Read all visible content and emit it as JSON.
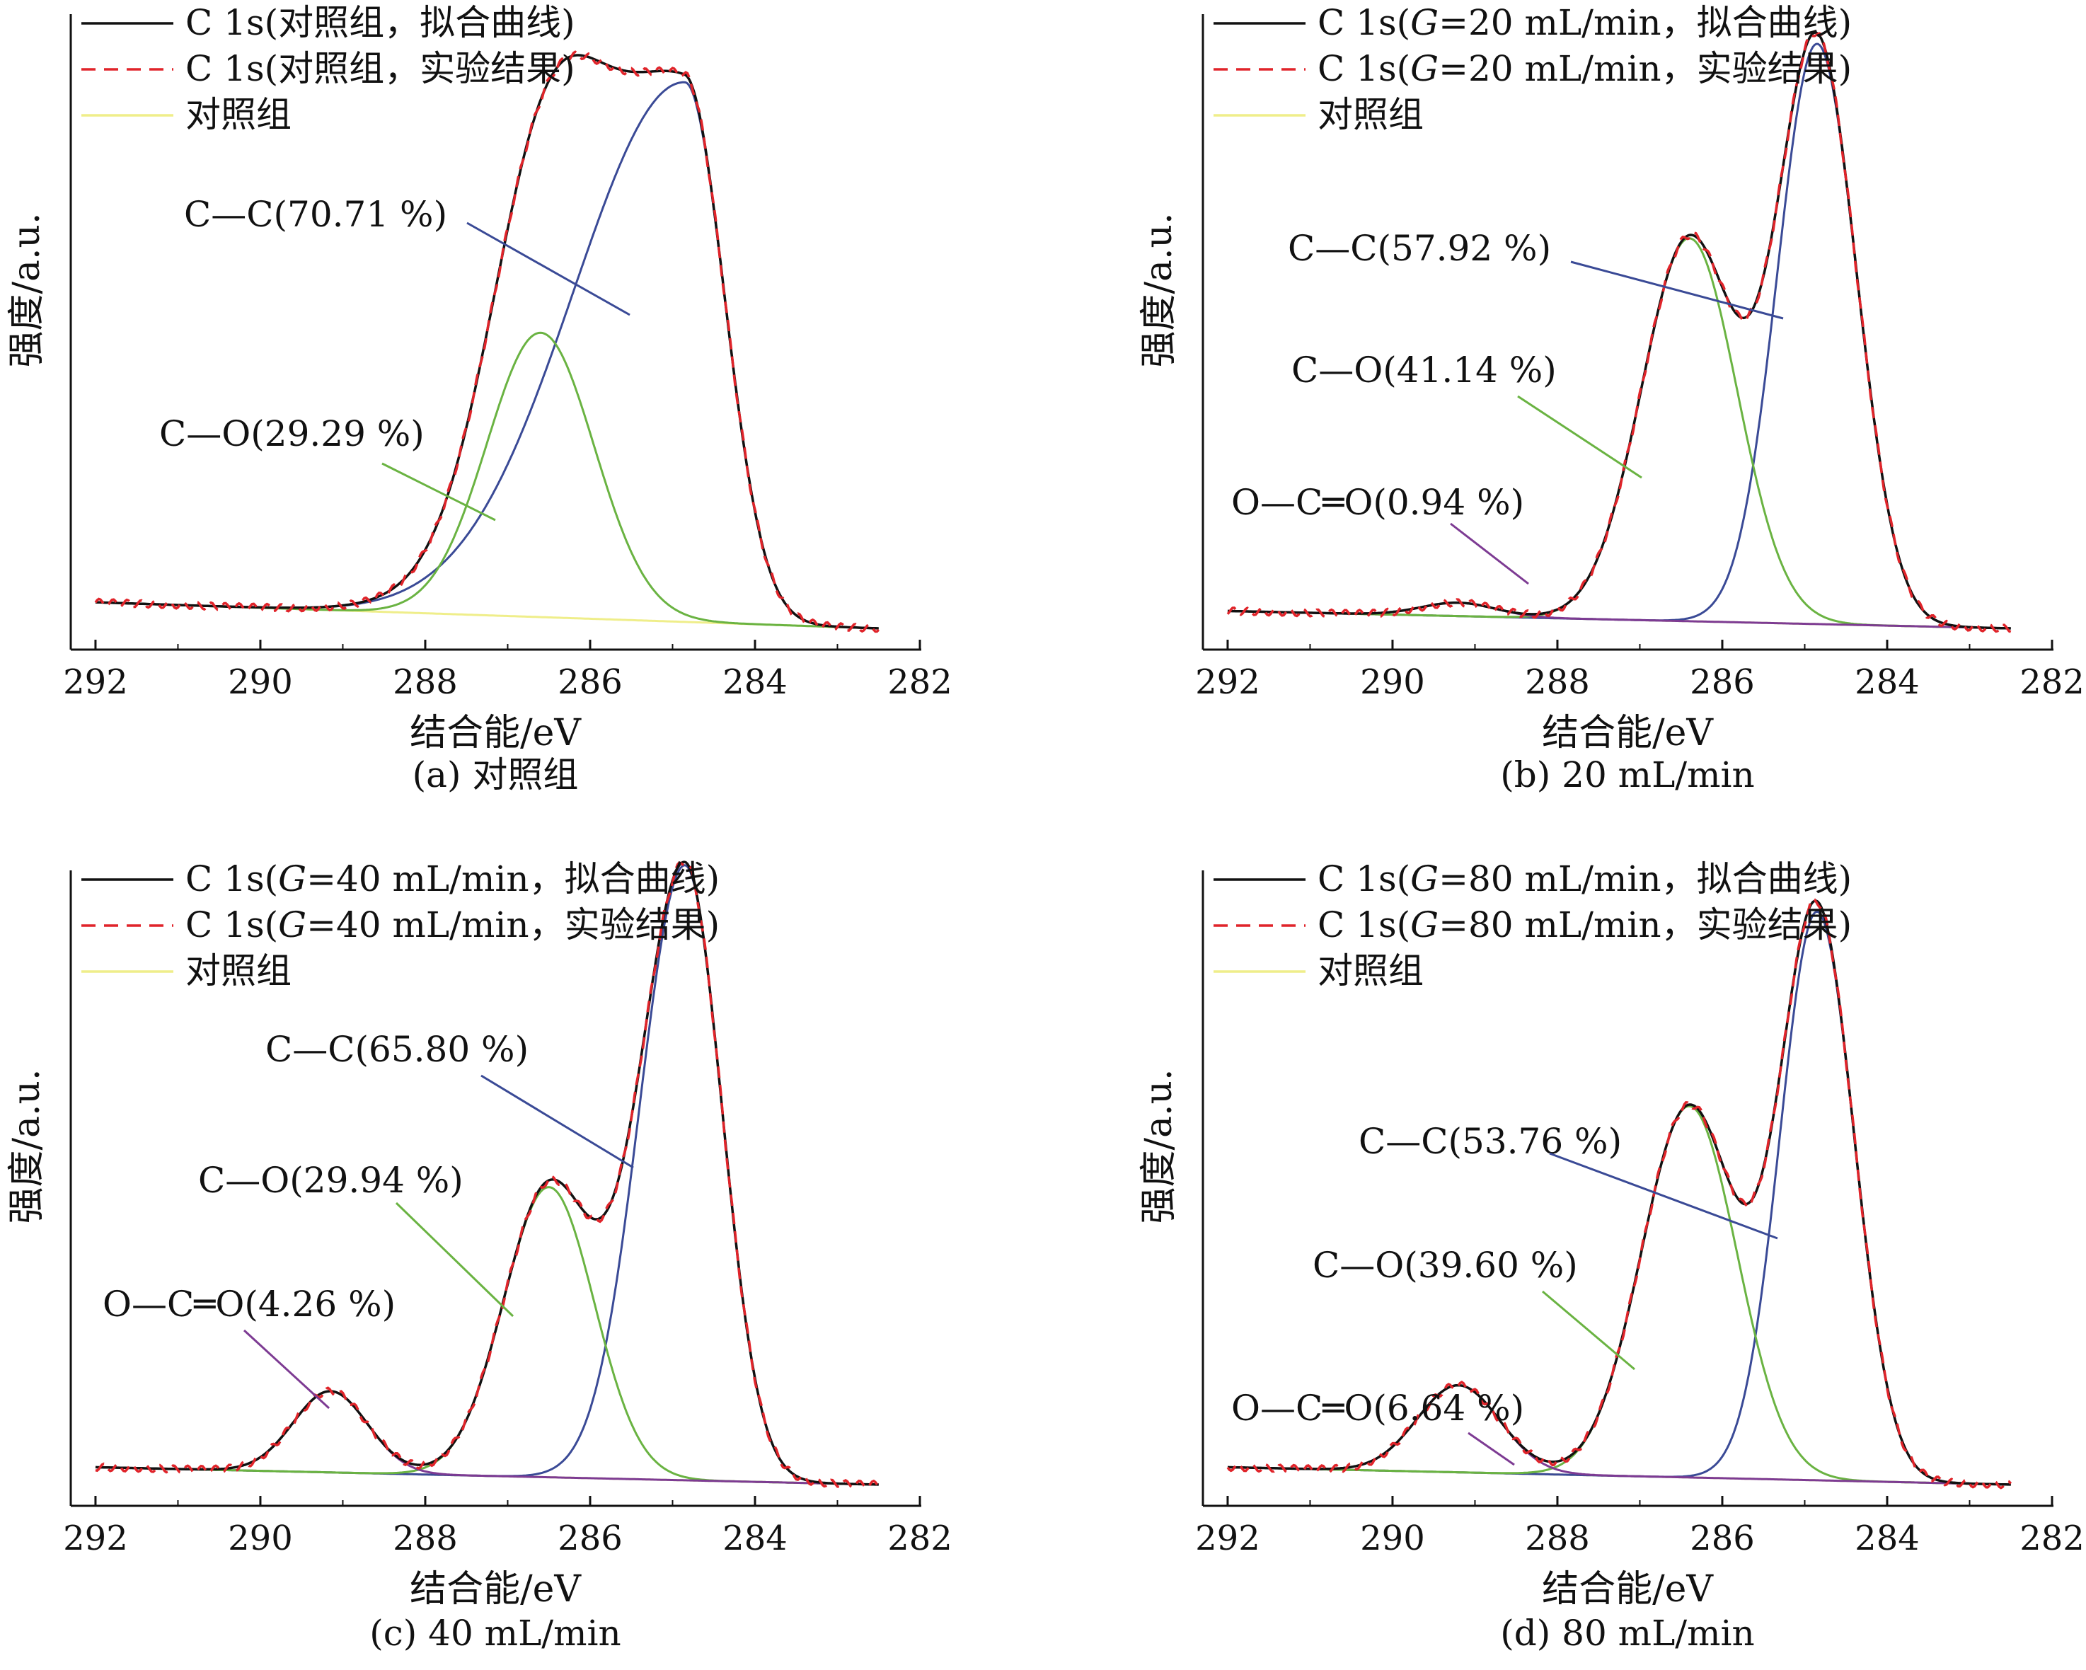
{
  "figure": {
    "common": {
      "xlabel": "结合能/eV",
      "ylabel": "强度/a.u.",
      "x_ticks": [
        292,
        290,
        288,
        286,
        284,
        282
      ],
      "xlim": [
        292.3,
        282
      ],
      "y_reversed_axis": true
    },
    "colors": {
      "fit": "#111111",
      "experiment": "#e0242a",
      "control": "#efee8a",
      "c_c": "#3a4a96",
      "c_o": "#6ab342",
      "o_c_o": "#7d3b93"
    },
    "icons": {
      "fit": "solid-line-icon",
      "experiment": "dashed-line-icon",
      "control": "solid-line-icon"
    }
  },
  "chart_data": [
    {
      "type": "line",
      "caption": "(a) 对照组",
      "xlabel": "结合能/eV",
      "ylabel": "强度/a.u.",
      "xlim": [
        292.3,
        282
      ],
      "ylim": [
        0,
        1
      ],
      "legend_position": "top-left",
      "legend": [
        {
          "key": "fit",
          "label_a": "C 1s(对照组，拟合曲线)",
          "label_g": "",
          "label_b": ""
        },
        {
          "key": "experiment",
          "label_a": "C 1s(对照组，实验结果)",
          "label_g": "",
          "label_b": ""
        },
        {
          "key": "control",
          "label_a": "对照组",
          "label_g": "",
          "label_b": ""
        }
      ],
      "baseline": {
        "start": 0.045,
        "end": 0.0
      },
      "peaks": [
        {
          "key": "c_c",
          "label": "C—C(70.71 %)",
          "center": 284.85,
          "height": 0.93,
          "sigma_left": 1.35,
          "sigma_right": 0.48
        },
        {
          "key": "c_o",
          "label": "C—O(29.29 %)",
          "center": 286.6,
          "height": 0.49,
          "sigma_left": 0.65,
          "sigma_right": 0.65
        }
      ]
    },
    {
      "type": "line",
      "caption": "(b) 20 mL/min",
      "xlabel": "结合能/eV",
      "ylabel": "强度/a.u.",
      "xlim": [
        292.3,
        282
      ],
      "ylim": [
        0,
        1
      ],
      "legend_position": "top-left",
      "legend": [
        {
          "key": "fit",
          "label_a": "C 1s(",
          "label_g": "G",
          "label_b": "=20 mL/min，拟合曲线)"
        },
        {
          "key": "experiment",
          "label_a": "C 1s(",
          "label_g": "G",
          "label_b": "=20 mL/min，实验结果)"
        },
        {
          "key": "control",
          "label_a": "对照组",
          "label_g": "",
          "label_b": ""
        }
      ],
      "baseline": {
        "start": 0.03,
        "end": 0.0
      },
      "peaks": [
        {
          "key": "c_c",
          "label": "C—C(57.92 %)",
          "center": 284.85,
          "height": 1.0,
          "sigma_left": 0.48,
          "sigma_right": 0.48
        },
        {
          "key": "c_o",
          "label": "C—O(41.14 %)",
          "center": 286.4,
          "height": 0.66,
          "sigma_left": 0.58,
          "sigma_right": 0.58
        },
        {
          "key": "o_c_o",
          "label": "O—C═O(0.94 %)",
          "center": 289.2,
          "height": 0.023,
          "sigma_left": 0.45,
          "sigma_right": 0.45
        }
      ]
    },
    {
      "type": "line",
      "caption": "(c) 40 mL/min",
      "xlabel": "结合能/eV",
      "ylabel": "强度/a.u.",
      "xlim": [
        292.3,
        282
      ],
      "ylim": [
        0,
        1
      ],
      "legend_position": "top-left",
      "legend": [
        {
          "key": "fit",
          "label_a": "C 1s(",
          "label_g": "G",
          "label_b": "=40 mL/min，拟合曲线)"
        },
        {
          "key": "experiment",
          "label_a": "C 1s(",
          "label_g": "G",
          "label_b": "=40 mL/min，实验结果)"
        },
        {
          "key": "control",
          "label_a": "对照组",
          "label_g": "",
          "label_b": ""
        }
      ],
      "baseline": {
        "start": 0.03,
        "end": 0.0
      },
      "peaks": [
        {
          "key": "c_c",
          "label": "C—C(65.80 %)",
          "center": 284.85,
          "height": 1.06,
          "sigma_left": 0.55,
          "sigma_right": 0.45
        },
        {
          "key": "c_o",
          "label": "C—O(29.94 %)",
          "center": 286.5,
          "height": 0.5,
          "sigma_left": 0.55,
          "sigma_right": 0.55
        },
        {
          "key": "o_c_o",
          "label": "O—C═O(4.26 %)",
          "center": 289.15,
          "height": 0.14,
          "sigma_left": 0.45,
          "sigma_right": 0.45
        }
      ]
    },
    {
      "type": "line",
      "caption": "(d) 80 mL/min",
      "xlabel": "结合能/eV",
      "ylabel": "强度/a.u.",
      "xlim": [
        292.3,
        282
      ],
      "ylim": [
        0,
        1
      ],
      "legend_position": "top-left",
      "legend": [
        {
          "key": "fit",
          "label_a": "C 1s(",
          "label_g": "G",
          "label_b": "=80 mL/min，拟合曲线)"
        },
        {
          "key": "experiment",
          "label_a": "C 1s(",
          "label_g": "G",
          "label_b": "=80 mL/min，实验结果)"
        },
        {
          "key": "control",
          "label_a": "对照组",
          "label_g": "",
          "label_b": ""
        }
      ],
      "baseline": {
        "start": 0.03,
        "end": 0.0
      },
      "peaks": [
        {
          "key": "c_c",
          "label": "C—C(53.76 %)",
          "center": 284.85,
          "height": 0.98,
          "sigma_left": 0.45,
          "sigma_right": 0.45
        },
        {
          "key": "c_o",
          "label": "C—O(39.60 %)",
          "center": 286.4,
          "height": 0.64,
          "sigma_left": 0.58,
          "sigma_right": 0.58
        },
        {
          "key": "o_c_o",
          "label": "O—C═O(6.64 %)",
          "center": 289.2,
          "height": 0.15,
          "sigma_left": 0.5,
          "sigma_right": 0.5
        }
      ]
    }
  ]
}
